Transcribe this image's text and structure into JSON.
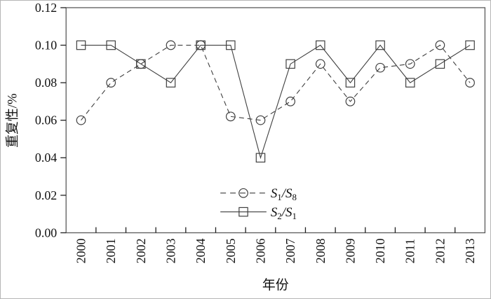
{
  "chart_data": {
    "type": "line",
    "title": "",
    "xlabel": "年份",
    "ylabel": "重复性/%",
    "categories": [
      "2000",
      "2001",
      "2002",
      "2003",
      "2004",
      "2005",
      "2006",
      "2007",
      "2008",
      "2009",
      "2010",
      "2011",
      "2012",
      "2013"
    ],
    "series": [
      {
        "id": "s1-s8",
        "name": "S1/S8",
        "label_parts": [
          [
            "S",
            "1"
          ],
          [
            "/S",
            "8"
          ]
        ],
        "marker": "circle",
        "line": "dashed",
        "values": [
          0.06,
          0.08,
          0.09,
          0.1,
          0.1,
          0.062,
          0.06,
          0.07,
          0.09,
          0.07,
          0.088,
          0.09,
          0.1,
          0.08
        ]
      },
      {
        "id": "s2-s1",
        "name": "S2/S1",
        "label_parts": [
          [
            "S",
            "2"
          ],
          [
            "/S",
            "1"
          ]
        ],
        "marker": "square",
        "line": "solid",
        "values": [
          0.1,
          0.1,
          0.09,
          0.08,
          0.1,
          0.1,
          0.04,
          0.09,
          0.1,
          0.08,
          0.1,
          0.08,
          0.09,
          0.1
        ]
      }
    ],
    "ylim": [
      0,
      0.12
    ],
    "ytick_step": 0.02,
    "ytick_labels": [
      "0.00",
      "0.02",
      "0.04",
      "0.06",
      "0.08",
      "0.10",
      "0.12"
    ],
    "grid": false,
    "legend_position": "inside-bottom-center"
  },
  "colors": {
    "line": "#3f3f3f",
    "frame": "#5a5a5a",
    "tick": "#1f1f1f",
    "text": "#111111",
    "background": "#ffffff",
    "image_border": "#b5b5b5"
  }
}
